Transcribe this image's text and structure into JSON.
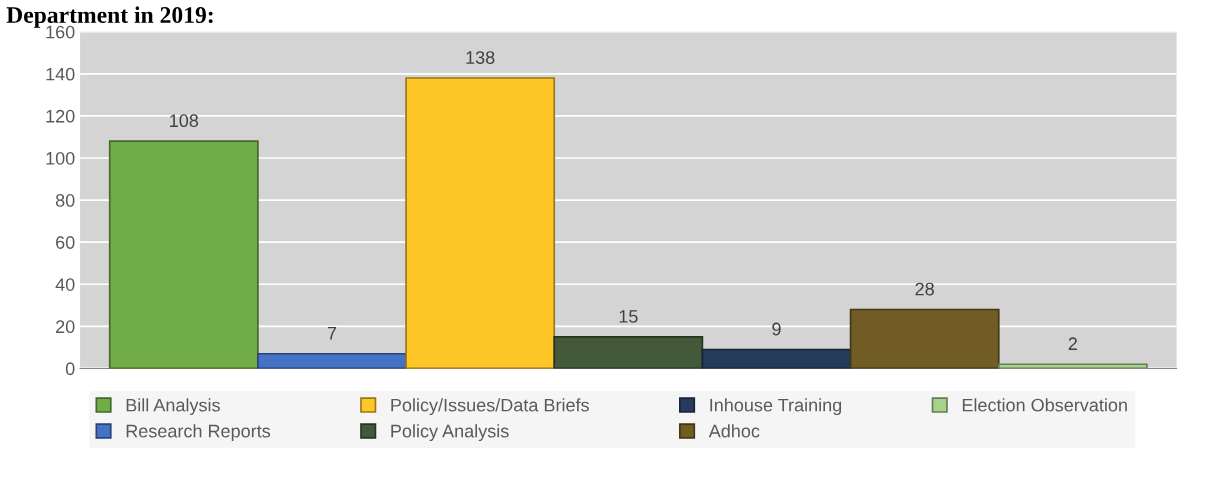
{
  "chart_data": {
    "type": "bar",
    "title": "Department in 2019:",
    "categories": [
      null,
      null,
      null,
      null,
      null,
      null,
      null
    ],
    "series": [
      {
        "name": "Bill Analysis",
        "color": "#70ad47",
        "values": [
          108,
          null,
          null,
          null,
          null,
          null,
          null
        ]
      },
      {
        "name": "Research Reports",
        "color": "#4472c4",
        "values": [
          null,
          7,
          null,
          null,
          null,
          null,
          null
        ]
      },
      {
        "name": "Policy/Issues/Data Briefs",
        "color": "#ffc628",
        "values": [
          null,
          null,
          138,
          null,
          null,
          null,
          null
        ]
      },
      {
        "name": "Policy Analysis",
        "color": "#43593a",
        "values": [
          null,
          null,
          null,
          15,
          null,
          null,
          null
        ]
      },
      {
        "name": "Inhouse Training",
        "color": "#263c5c",
        "values": [
          null,
          null,
          null,
          null,
          9,
          null,
          null
        ]
      },
      {
        "name": "Adhoc",
        "color": "#725c26",
        "values": [
          null,
          null,
          null,
          null,
          null,
          28,
          null
        ]
      },
      {
        "name": "Election Observation",
        "color": "#a9d18e",
        "values": [
          null,
          null,
          null,
          null,
          null,
          null,
          2
        ]
      }
    ],
    "ylim": [
      0,
      160
    ],
    "yticks": [
      0,
      20,
      40,
      60,
      80,
      100,
      120,
      140,
      160
    ],
    "grid": "y",
    "legend": "bottom",
    "data_labels": true
  }
}
